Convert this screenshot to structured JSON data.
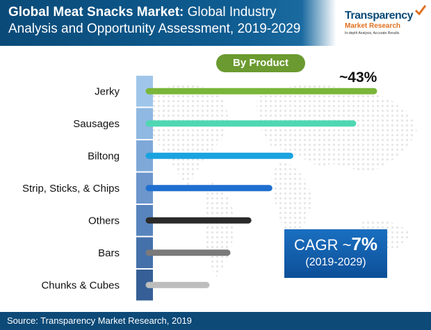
{
  "header": {
    "title_bold": "Global Meat Snacks Market:",
    "title_rest": " Global Industry",
    "title_line2": "Analysis and Opportunity Assessment, 2019-2029"
  },
  "logo": {
    "name": "Transparency",
    "name2": "Market Research",
    "tagline": "In-depth Analysis, Accurate Results"
  },
  "segment_pill": "By Product",
  "top_share_label": "~43%",
  "cagr": {
    "prefix": "CAGR ~",
    "value": "7%",
    "period": "(2019-2029)"
  },
  "footer": "Source: Transparency Market Research, 2019",
  "colors": {
    "header_dark": "#0a4a78",
    "pill": "#6b9a30",
    "cagr_box": "#1a6fc0",
    "footer": "#0d4a78"
  },
  "chart_data": {
    "type": "bar",
    "orientation": "horizontal",
    "categories": [
      "Jerky",
      "Sausages",
      "Biltong",
      "Strip, Sticks, & Chips",
      "Others",
      "Bars",
      "Chunks & Cubes"
    ],
    "values": [
      43,
      39,
      27,
      23,
      19,
      15,
      11
    ],
    "colors": [
      "#7ab63a",
      "#4fd7b2",
      "#1aa3e0",
      "#1e6fd0",
      "#2a2a2a",
      "#7a7a7a",
      "#bdbdbd"
    ],
    "annotation": "~43%"
  }
}
